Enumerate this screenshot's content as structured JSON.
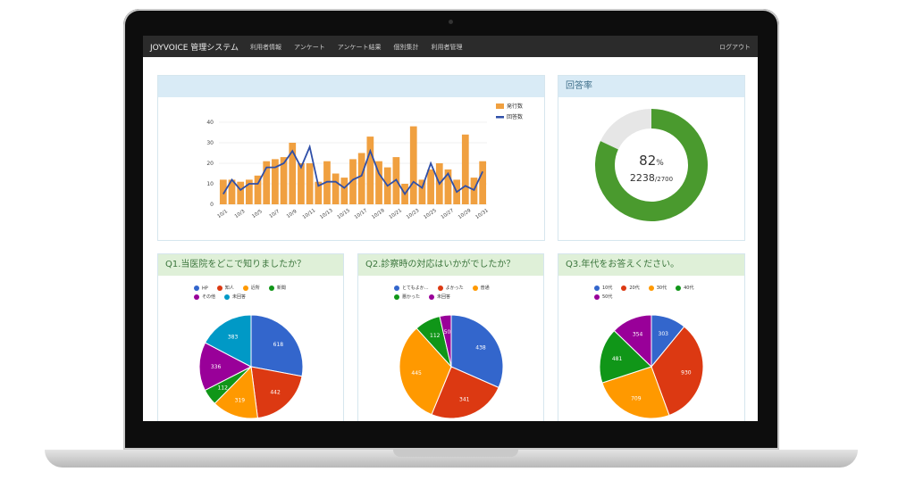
{
  "navbar": {
    "brand": "JOYVOICE 管理システム",
    "items": [
      "利用者情報",
      "アンケート",
      "アンケート結果",
      "個別集計",
      "利用者管理"
    ],
    "logout": "ログアウト"
  },
  "panels": {
    "rate_title": "回答率",
    "q1_title": "Q1.当医院をどこで知りましたか？",
    "q2_title": "Q2.診察時の対応はいかがでしたか？",
    "q3_title": "Q3.年代をお答えください。"
  },
  "rate": {
    "percent_value": "82",
    "percent_unit": "%",
    "answered": "2238",
    "total": "/2700",
    "fraction": 0.82,
    "color": "#4a9a2e",
    "remainder_color": "#e6e6e6"
  },
  "chart_data": [
    {
      "type": "bar",
      "categories": [
        "10/1",
        "10/2",
        "10/3",
        "10/4",
        "10/5",
        "10/6",
        "10/7",
        "10/8",
        "10/9",
        "10/10",
        "10/11",
        "10/12",
        "10/13",
        "10/14",
        "10/15",
        "10/16",
        "10/17",
        "10/18",
        "10/19",
        "10/20",
        "10/21",
        "10/22",
        "10/23",
        "10/24",
        "10/25",
        "10/26",
        "10/27",
        "10/28",
        "10/29",
        "10/30",
        "10/31"
      ],
      "tick_labels": [
        "10/1",
        "10/3",
        "10/5",
        "10/7",
        "10/9",
        "10/11",
        "10/13",
        "10/15",
        "10/17",
        "10/19",
        "10/21",
        "10/23",
        "10/25",
        "10/27",
        "10/29",
        "10/31"
      ],
      "series": [
        {
          "name": "発行数",
          "type": "bar",
          "color": "#f0a040",
          "values": [
            12,
            12,
            11,
            12,
            14,
            21,
            22,
            23,
            30,
            20,
            20,
            11,
            21,
            15,
            13,
            22,
            25,
            33,
            21,
            18,
            23,
            10,
            38,
            12,
            17,
            20,
            17,
            12,
            34,
            13,
            21
          ]
        },
        {
          "name": "回答数",
          "type": "line",
          "color": "#2f4fa8",
          "values": [
            5,
            12,
            7,
            10,
            10,
            18,
            18,
            20,
            26,
            18,
            28,
            9,
            11,
            11,
            8,
            12,
            14,
            26,
            15,
            9,
            12,
            5,
            11,
            8,
            20,
            10,
            15,
            6,
            9,
            7,
            16
          ]
        }
      ],
      "yticks": [
        0,
        10,
        20,
        30,
        40
      ],
      "ylim": [
        0,
        40
      ]
    },
    {
      "type": "pie",
      "legend": [
        {
          "name": "HP",
          "color": "#3366cc"
        },
        {
          "name": "知人",
          "color": "#dc3912"
        },
        {
          "name": "近所",
          "color": "#ff9900"
        },
        {
          "name": "新聞",
          "color": "#109618"
        },
        {
          "name": "その他",
          "color": "#990099"
        },
        {
          "name": "未回答",
          "color": "#0099c6"
        }
      ],
      "values": [
        618,
        442,
        319,
        112,
        336,
        383
      ]
    },
    {
      "type": "pie",
      "legend": [
        {
          "name": "とてもよか…",
          "color": "#3366cc"
        },
        {
          "name": "よかった",
          "color": "#dc3912"
        },
        {
          "name": "普通",
          "color": "#ff9900"
        },
        {
          "name": "悪かった",
          "color": "#109618"
        },
        {
          "name": "未回答",
          "color": "#990099"
        }
      ],
      "values": [
        438,
        341,
        445,
        112,
        50
      ]
    },
    {
      "type": "pie",
      "legend": [
        {
          "name": "10代",
          "color": "#3366cc"
        },
        {
          "name": "20代",
          "color": "#dc3912"
        },
        {
          "name": "30代",
          "color": "#ff9900"
        },
        {
          "name": "40代",
          "color": "#109618"
        },
        {
          "name": "50代",
          "color": "#990099"
        }
      ],
      "values": [
        303,
        930,
        709,
        481,
        354
      ]
    }
  ]
}
